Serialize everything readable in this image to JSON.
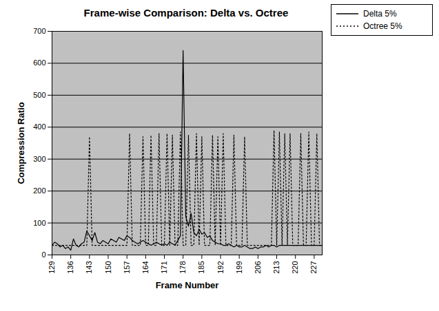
{
  "chart_data": {
    "type": "line",
    "title": "Frame-wise Comparison: Delta vs. Octree",
    "x_label": "Frame Number",
    "y_label": "Compression Ratio",
    "x": [
      129,
      130,
      131,
      132,
      133,
      134,
      135,
      136,
      137,
      138,
      139,
      140,
      141,
      142,
      143,
      144,
      145,
      146,
      147,
      148,
      149,
      150,
      151,
      152,
      153,
      154,
      155,
      156,
      157,
      158,
      159,
      160,
      161,
      162,
      163,
      164,
      165,
      166,
      167,
      168,
      169,
      170,
      171,
      172,
      173,
      174,
      175,
      176,
      177,
      178,
      179,
      180,
      181,
      182,
      183,
      184,
      185,
      186,
      187,
      188,
      189,
      190,
      191,
      192,
      193,
      194,
      195,
      196,
      197,
      198,
      199,
      200,
      201,
      202,
      203,
      204,
      205,
      206,
      207,
      208,
      209,
      210,
      211,
      212,
      213,
      214,
      215,
      216,
      217,
      218,
      219,
      220,
      221,
      222,
      223,
      224,
      225,
      226,
      227,
      228,
      229,
      230
    ],
    "series": [
      {
        "name": "Delta 5%",
        "color": "#000000",
        "line_style": "solid",
        "values": [
          30,
          40,
          35,
          25,
          30,
          20,
          25,
          15,
          50,
          30,
          25,
          35,
          40,
          75,
          60,
          45,
          70,
          40,
          35,
          45,
          40,
          35,
          50,
          45,
          40,
          55,
          50,
          45,
          60,
          55,
          45,
          40,
          35,
          40,
          45,
          40,
          35,
          30,
          35,
          40,
          35,
          30,
          35,
          30,
          40,
          35,
          30,
          45,
          60,
          640,
          120,
          90,
          130,
          70,
          60,
          80,
          65,
          70,
          55,
          60,
          45,
          40,
          35,
          35,
          30,
          30,
          35,
          30,
          25,
          30,
          25,
          25,
          30,
          25,
          20,
          20,
          25,
          20,
          25,
          25,
          30,
          25,
          30,
          30,
          25,
          30,
          30,
          30,
          30,
          30,
          30,
          30,
          30,
          30,
          30,
          30,
          30,
          30,
          30,
          30,
          30,
          30
        ]
      },
      {
        "name": "Octree 5%",
        "color": "#000000",
        "line_style": "dotted",
        "values": [
          30,
          30,
          30,
          30,
          30,
          30,
          30,
          30,
          30,
          30,
          30,
          30,
          30,
          30,
          370,
          30,
          30,
          30,
          30,
          30,
          30,
          30,
          30,
          30,
          30,
          30,
          30,
          30,
          30,
          380,
          30,
          30,
          30,
          30,
          370,
          30,
          30,
          375,
          30,
          30,
          380,
          30,
          30,
          380,
          30,
          375,
          30,
          30,
          385,
          30,
          30,
          375,
          30,
          30,
          380,
          30,
          370,
          30,
          30,
          30,
          375,
          30,
          370,
          30,
          380,
          30,
          30,
          30,
          375,
          30,
          30,
          30,
          370,
          30,
          30,
          30,
          30,
          30,
          30,
          30,
          30,
          30,
          30,
          390,
          30,
          385,
          30,
          380,
          30,
          380,
          30,
          30,
          30,
          380,
          30,
          30,
          385,
          30,
          30,
          380,
          30,
          30
        ]
      }
    ],
    "xlim": [
      129,
      230
    ],
    "xticks": [
      129,
      136,
      143,
      150,
      157,
      164,
      171,
      178,
      185,
      192,
      199,
      206,
      213,
      220,
      227
    ],
    "ylim": [
      0,
      700
    ],
    "yticks": [
      0,
      100,
      200,
      300,
      400,
      500,
      600,
      700
    ],
    "grid": true,
    "legend": "top-right"
  }
}
